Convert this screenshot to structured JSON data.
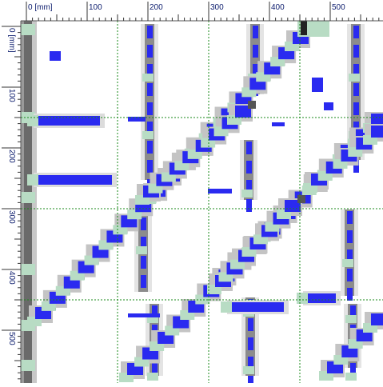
{
  "top_ruler": {
    "labels": [
      "0 [mm]",
      "100",
      "200",
      "300",
      "400",
      "500"
    ]
  },
  "left_ruler": {
    "labels": [
      "0 [mm]",
      "100",
      "200",
      "300",
      "400",
      "500"
    ]
  }
}
